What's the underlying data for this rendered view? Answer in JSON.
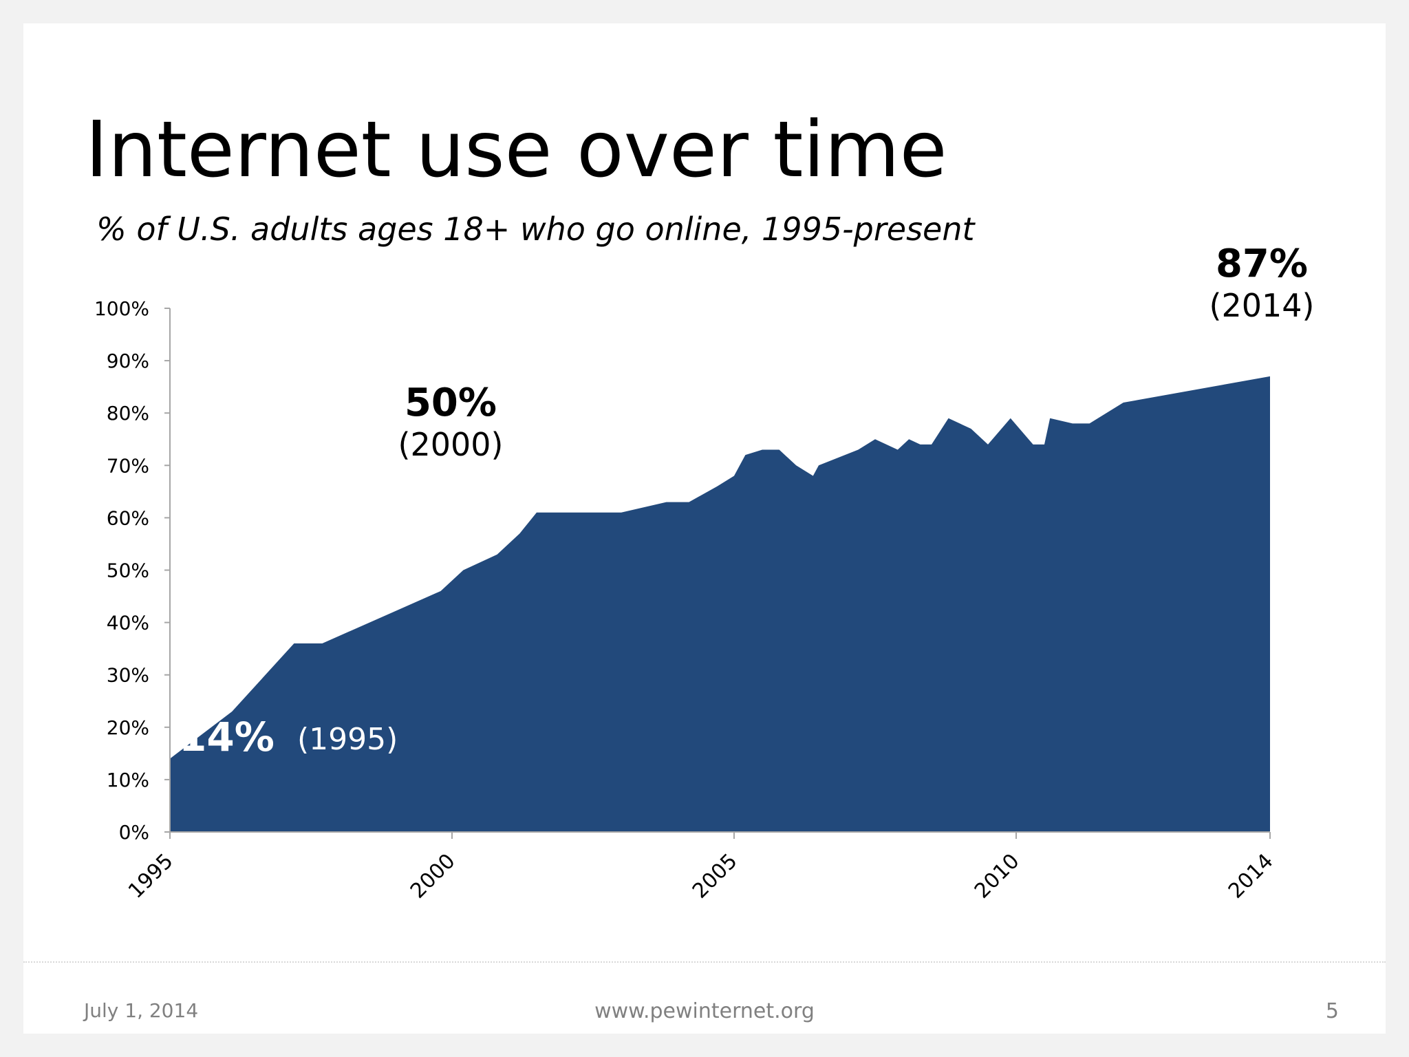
{
  "slide": {
    "title": "Internet use over time",
    "subtitle": "% of U.S. adults ages 18+ who go online, 1995-present",
    "footer": {
      "date": "July 1, 2014",
      "url": "www.pewinternet.org",
      "page": "5"
    }
  },
  "chart_data": {
    "type": "area",
    "title": "Internet use over time",
    "subtitle": "% of U.S. adults ages 18+ who go online, 1995-present",
    "xlabel": "",
    "ylabel": "",
    "xlim": [
      1995,
      2014.5
    ],
    "ylim": [
      0,
      100
    ],
    "y_ticks": [
      "0%",
      "10%",
      "20%",
      "30%",
      "40%",
      "50%",
      "60%",
      "70%",
      "80%",
      "90%",
      "100%"
    ],
    "x_ticks": [
      {
        "value": 1995,
        "label": "1995"
      },
      {
        "value": 2000,
        "label": "2000"
      },
      {
        "value": 2005,
        "label": "2005"
      },
      {
        "value": 2010,
        "label": "2010"
      },
      {
        "value": 2014.5,
        "label": "2014"
      }
    ],
    "grid": false,
    "color": "#22497b",
    "series": [
      {
        "x": [
          1995,
          1996.1,
          1997.2,
          1997.7,
          1999.8,
          2000.2,
          2000.8,
          2001.2,
          2001.5,
          2002.4,
          2003,
          2003.8,
          2004.2,
          2004.7,
          2005,
          2005.2,
          2005.5,
          2005.8,
          2006.1,
          2006.4,
          2006.5,
          2007.2,
          2007.5,
          2007.9,
          2008.1,
          2008.3,
          2008.5,
          2008.8,
          2009.2,
          2009.5,
          2009.9,
          2010.3,
          2010.5,
          2010.6,
          2011,
          2011.3,
          2011.9,
          2014.5
        ],
        "values": [
          14,
          23,
          36,
          36,
          46,
          50,
          53,
          57,
          61,
          61,
          61,
          63,
          63,
          66,
          68,
          72,
          73,
          73,
          70,
          68,
          70,
          73,
          75,
          73,
          75,
          74,
          74,
          79,
          77,
          74,
          79,
          74,
          74,
          79,
          78,
          78,
          82,
          87
        ]
      }
    ],
    "annotations": [
      {
        "value": "50%",
        "year": "(2000)"
      },
      {
        "value": "87%",
        "year": "(2014)"
      },
      {
        "value": "14%",
        "year": "(1995)"
      }
    ]
  }
}
